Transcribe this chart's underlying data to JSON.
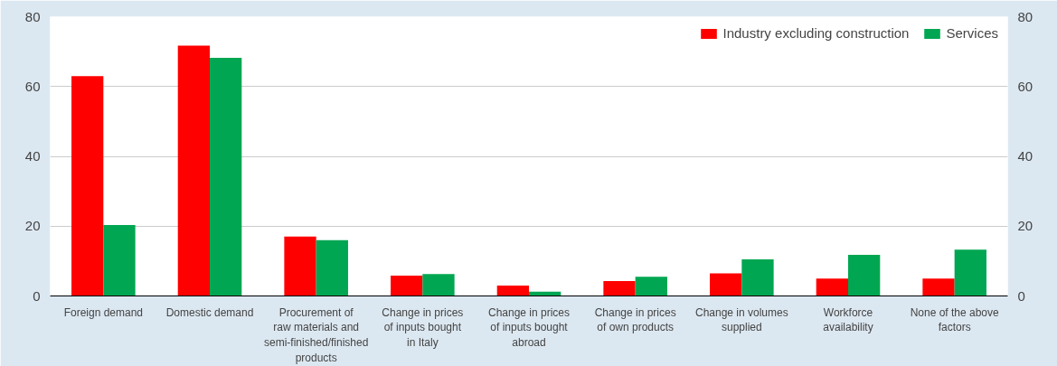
{
  "chart_data": {
    "type": "bar",
    "categories": [
      "Foreign demand",
      "Domestic demand",
      "Procurement of raw materials and semi-finished/finished products",
      "Change in prices of inputs bought in Italy",
      "Change in prices of inputs bought abroad",
      "Change in prices of own products",
      "Change in volumes supplied",
      "Workforce availability",
      "None of the above factors"
    ],
    "series": [
      {
        "name": "Industry excluding construction",
        "color": "#ff0000",
        "values": [
          63,
          71.7,
          17,
          5.8,
          3,
          4.3,
          6.5,
          5,
          5
        ]
      },
      {
        "name": "Services",
        "color": "#00a651",
        "values": [
          20.3,
          68.2,
          16,
          6.3,
          1.2,
          5.5,
          10.5,
          11.8,
          13.3
        ]
      }
    ],
    "ylim": [
      0,
      80
    ],
    "yticks": [
      0,
      20,
      40,
      60,
      80
    ],
    "y2lim": [
      0,
      80
    ],
    "y2ticks": [
      0,
      20,
      40,
      60,
      80
    ],
    "grid": "y",
    "legend": "top right"
  }
}
